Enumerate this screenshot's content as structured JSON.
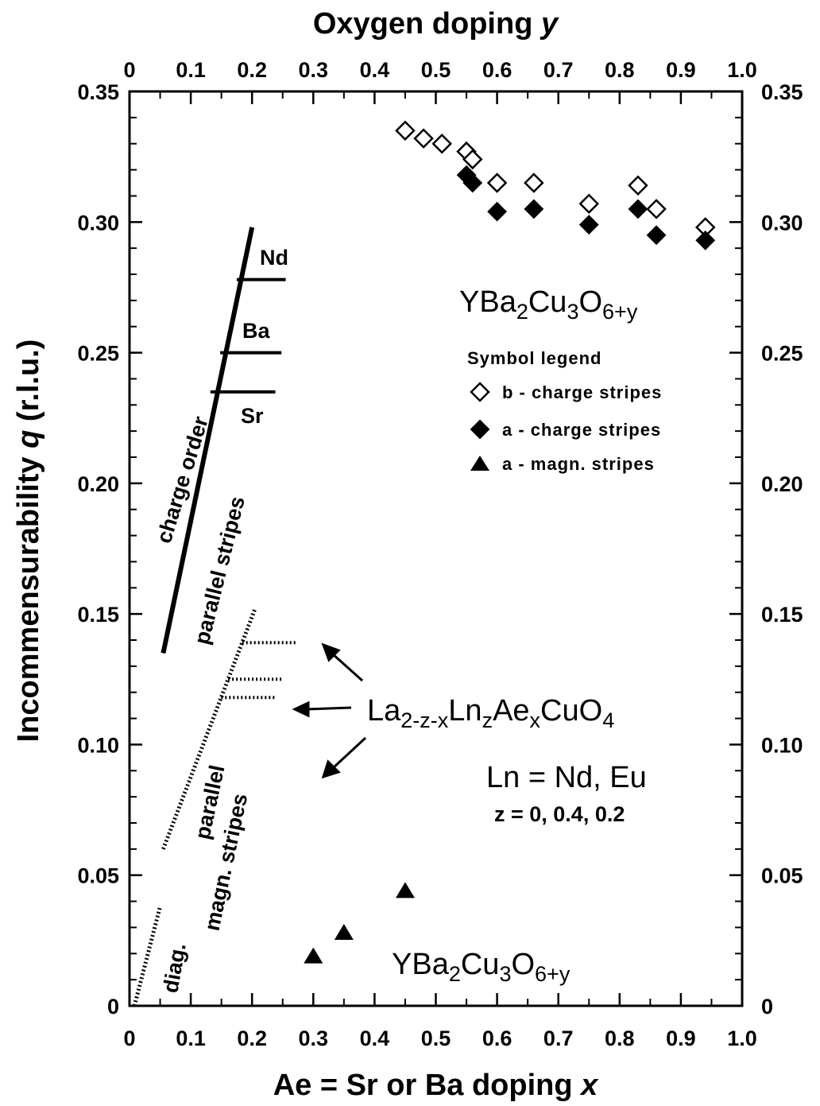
{
  "chart_data": {
    "type": "scatter",
    "x_bottom": {
      "label_prefix": "Ae = Sr or Ba doping ",
      "label_var": "x",
      "range": [
        0,
        1.0
      ],
      "ticks": [
        "0",
        "0.1",
        "0.2",
        "0.3",
        "0.4",
        "0.5",
        "0.6",
        "0.7",
        "0.8",
        "0.9",
        "1.0"
      ]
    },
    "x_top": {
      "label_prefix": "Oxygen doping ",
      "label_var": "y",
      "range": [
        0,
        1.0
      ],
      "ticks": [
        "0",
        "0.1",
        "0.2",
        "0.3",
        "0.4",
        "0.5",
        "0.6",
        "0.7",
        "0.8",
        "0.9",
        "1.0"
      ]
    },
    "y_axis": {
      "label_prefix": "Incommensurability ",
      "label_var": "q",
      "label_suffix": " (r.l.u.)",
      "range": [
        0,
        0.35
      ],
      "ticks_left": [
        "0",
        "0.05",
        "0.10",
        "0.15",
        "0.20",
        "0.25",
        "0.30",
        "0.35"
      ],
      "ticks_right": [
        "0",
        "0.05",
        "0.10",
        "0.15",
        "0.20",
        "0.25",
        "0.30",
        "0.35"
      ]
    },
    "series": [
      {
        "name": "b - charge stripes",
        "marker": "open-diamond",
        "x_axis": "top",
        "points": [
          [
            0.45,
            0.335
          ],
          [
            0.48,
            0.332
          ],
          [
            0.51,
            0.33
          ],
          [
            0.55,
            0.327
          ],
          [
            0.56,
            0.324
          ],
          [
            0.6,
            0.315
          ],
          [
            0.66,
            0.315
          ],
          [
            0.75,
            0.307
          ],
          [
            0.83,
            0.314
          ],
          [
            0.86,
            0.305
          ],
          [
            0.94,
            0.298
          ]
        ]
      },
      {
        "name": "a - charge stripes",
        "marker": "filled-diamond",
        "x_axis": "top",
        "points": [
          [
            0.55,
            0.318
          ],
          [
            0.56,
            0.315
          ],
          [
            0.6,
            0.304
          ],
          [
            0.66,
            0.305
          ],
          [
            0.75,
            0.299
          ],
          [
            0.83,
            0.305
          ],
          [
            0.86,
            0.295
          ],
          [
            0.94,
            0.293
          ]
        ]
      },
      {
        "name": "a - magn. stripes",
        "marker": "filled-triangle",
        "x_axis": "bottom",
        "points": [
          [
            0.3,
            0.019
          ],
          [
            0.35,
            0.028
          ],
          [
            0.45,
            0.044
          ]
        ]
      }
    ],
    "bands": {
      "charge_line": [
        [
          0.055,
          0.135
        ],
        [
          0.2,
          0.298
        ]
      ],
      "charge_marks": [
        {
          "label": "Nd",
          "q": 0.278,
          "x_start": 0.175,
          "x_end": 0.255
        },
        {
          "label": "Ba",
          "q": 0.25,
          "x_start": 0.148,
          "x_end": 0.248
        },
        {
          "label": "Sr",
          "q": 0.235,
          "x_start": 0.132,
          "x_end": 0.238
        }
      ],
      "magn_line": [
        [
          0.055,
          0.06
        ],
        [
          0.205,
          0.152
        ]
      ],
      "magn_marks": [
        {
          "q": 0.139
        },
        {
          "q": 0.125
        },
        {
          "q": 0.118
        }
      ],
      "diag_line": [
        [
          0.008,
          0.0
        ],
        [
          0.05,
          0.038
        ]
      ]
    },
    "legend": {
      "title": "Symbol legend",
      "position": "right-middle",
      "entries": [
        "b - charge stripes",
        "a - charge stripes",
        "a - magn. stripes"
      ]
    },
    "annotations": {
      "ybco_top": {
        "base": "YBa",
        "s1": "2",
        "mid": "Cu",
        "s2": "3",
        "mid2": "O",
        "s3": "6+y"
      },
      "ybco_bottom": {
        "base": "YBa",
        "s1": "2",
        "mid": "Cu",
        "s2": "3",
        "mid2": "O",
        "s3": "6+y"
      },
      "lsco": {
        "a": "La",
        "s1": "2-z-x",
        "b": "Ln",
        "s2": "z",
        "c": "Ae",
        "s3": "x",
        "d": "CuO",
        "s4": "4"
      },
      "ln_line": "Ln = Nd, Eu",
      "z_line": "z =  0, 0.4,  0.2",
      "charge_order": "charge order",
      "parallel_stripes": "parallel stripes",
      "parallel": "parallel",
      "magn_stripes": "magn. stripes",
      "diag": "diag.",
      "nd": "Nd",
      "ba": "Ba",
      "sr": "Sr"
    },
    "grid": false
  }
}
